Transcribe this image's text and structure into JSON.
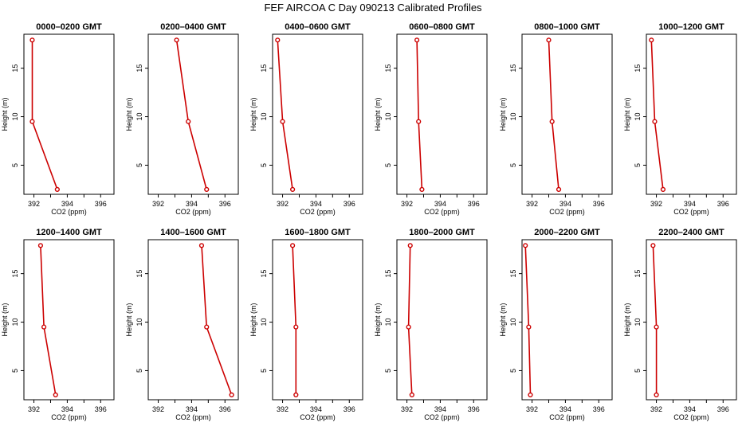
{
  "page": {
    "title": "FEF AIRCOA C  Day 090213  Calibrated Profiles"
  },
  "colors": {
    "profile_line": "#cc0000",
    "frame": "#000000"
  },
  "chart_data": [
    {
      "type": "line",
      "title": "0000–0200 GMT",
      "xlabel": "CO2 (ppm)",
      "ylabel": "Height (m)",
      "xlim": [
        391.4,
        396.8
      ],
      "ylim": [
        2.0,
        18.5
      ],
      "xticks": [
        "392",
        "394",
        "396"
      ],
      "yticks": [
        "5",
        "10",
        "15"
      ],
      "series": [
        {
          "x": [
            393.4,
            391.9,
            391.9
          ],
          "y": [
            2.5,
            9.5,
            17.9
          ]
        }
      ]
    },
    {
      "type": "line",
      "title": "0200–0400 GMT",
      "xlabel": "CO2 (ppm)",
      "ylabel": "Height (m)",
      "xlim": [
        391.4,
        396.8
      ],
      "ylim": [
        2.0,
        18.5
      ],
      "xticks": [
        "392",
        "394",
        "396"
      ],
      "yticks": [
        "5",
        "10",
        "15"
      ],
      "series": [
        {
          "x": [
            394.9,
            393.8,
            393.1
          ],
          "y": [
            2.5,
            9.5,
            17.9
          ]
        }
      ]
    },
    {
      "type": "line",
      "title": "0400–0600 GMT",
      "xlabel": "CO2 (ppm)",
      "ylabel": "Height (m)",
      "xlim": [
        391.4,
        396.8
      ],
      "ylim": [
        2.0,
        18.5
      ],
      "xticks": [
        "392",
        "394",
        "396"
      ],
      "yticks": [
        "5",
        "10",
        "15"
      ],
      "series": [
        {
          "x": [
            392.6,
            392.0,
            391.7
          ],
          "y": [
            2.5,
            9.5,
            17.9
          ]
        }
      ]
    },
    {
      "type": "line",
      "title": "0600–0800 GMT",
      "xlabel": "CO2 (ppm)",
      "ylabel": "Height (m)",
      "xlim": [
        391.4,
        396.8
      ],
      "ylim": [
        2.0,
        18.5
      ],
      "xticks": [
        "392",
        "394",
        "396"
      ],
      "yticks": [
        "5",
        "10",
        "15"
      ],
      "series": [
        {
          "x": [
            392.9,
            392.7,
            392.6
          ],
          "y": [
            2.5,
            9.5,
            17.9
          ]
        }
      ]
    },
    {
      "type": "line",
      "title": "0800–1000 GMT",
      "xlabel": "CO2 (ppm)",
      "ylabel": "Height (m)",
      "xlim": [
        391.4,
        396.8
      ],
      "ylim": [
        2.0,
        18.5
      ],
      "xticks": [
        "392",
        "394",
        "396"
      ],
      "yticks": [
        "5",
        "10",
        "15"
      ],
      "series": [
        {
          "x": [
            393.6,
            393.2,
            393.0
          ],
          "y": [
            2.5,
            9.5,
            17.9
          ]
        }
      ]
    },
    {
      "type": "line",
      "title": "1000–1200 GMT",
      "xlabel": "CO2 (ppm)",
      "ylabel": "Height (m)",
      "xlim": [
        391.4,
        396.8
      ],
      "ylim": [
        2.0,
        18.5
      ],
      "xticks": [
        "392",
        "394",
        "396"
      ],
      "yticks": [
        "5",
        "10",
        "15"
      ],
      "series": [
        {
          "x": [
            392.4,
            391.9,
            391.7
          ],
          "y": [
            2.5,
            9.5,
            17.9
          ]
        }
      ]
    },
    {
      "type": "line",
      "title": "1200–1400 GMT",
      "xlabel": "CO2 (ppm)",
      "ylabel": "Height (m)",
      "xlim": [
        391.4,
        396.8
      ],
      "ylim": [
        2.0,
        18.5
      ],
      "xticks": [
        "392",
        "394",
        "396"
      ],
      "yticks": [
        "5",
        "10",
        "15"
      ],
      "series": [
        {
          "x": [
            393.3,
            392.6,
            392.4
          ],
          "y": [
            2.5,
            9.5,
            17.9
          ]
        }
      ]
    },
    {
      "type": "line",
      "title": "1400–1600 GMT",
      "xlabel": "CO2 (ppm)",
      "ylabel": "Height (m)",
      "xlim": [
        391.4,
        396.8
      ],
      "ylim": [
        2.0,
        18.5
      ],
      "xticks": [
        "392",
        "394",
        "396"
      ],
      "yticks": [
        "5",
        "10",
        "15"
      ],
      "series": [
        {
          "x": [
            396.4,
            394.9,
            394.6
          ],
          "y": [
            2.5,
            9.5,
            17.9
          ]
        }
      ]
    },
    {
      "type": "line",
      "title": "1600–1800 GMT",
      "xlabel": "CO2 (ppm)",
      "ylabel": "Height (m)",
      "xlim": [
        391.4,
        396.8
      ],
      "ylim": [
        2.0,
        18.5
      ],
      "xticks": [
        "392",
        "394",
        "396"
      ],
      "yticks": [
        "5",
        "10",
        "15"
      ],
      "series": [
        {
          "x": [
            392.8,
            392.8,
            392.6
          ],
          "y": [
            2.5,
            9.5,
            17.9
          ]
        }
      ]
    },
    {
      "type": "line",
      "title": "1800–2000 GMT",
      "xlabel": "CO2 (ppm)",
      "ylabel": "Height (m)",
      "xlim": [
        391.4,
        396.8
      ],
      "ylim": [
        2.0,
        18.5
      ],
      "xticks": [
        "392",
        "394",
        "396"
      ],
      "yticks": [
        "5",
        "10",
        "15"
      ],
      "series": [
        {
          "x": [
            392.3,
            392.1,
            392.2
          ],
          "y": [
            2.5,
            9.5,
            17.9
          ]
        }
      ]
    },
    {
      "type": "line",
      "title": "2000–2200 GMT",
      "xlabel": "CO2 (ppm)",
      "ylabel": "Height (m)",
      "xlim": [
        391.4,
        396.8
      ],
      "ylim": [
        2.0,
        18.5
      ],
      "xticks": [
        "392",
        "394",
        "396"
      ],
      "yticks": [
        "5",
        "10",
        "15"
      ],
      "series": [
        {
          "x": [
            391.9,
            391.8,
            391.6
          ],
          "y": [
            2.5,
            9.5,
            17.9
          ]
        }
      ]
    },
    {
      "type": "line",
      "title": "2200–2400 GMT",
      "xlabel": "CO2 (ppm)",
      "ylabel": "Height (m)",
      "xlim": [
        391.4,
        396.8
      ],
      "ylim": [
        2.0,
        18.5
      ],
      "xticks": [
        "392",
        "394",
        "396"
      ],
      "yticks": [
        "5",
        "10",
        "15"
      ],
      "series": [
        {
          "x": [
            392.0,
            392.0,
            391.8
          ],
          "y": [
            2.5,
            9.5,
            17.9
          ]
        }
      ]
    }
  ]
}
